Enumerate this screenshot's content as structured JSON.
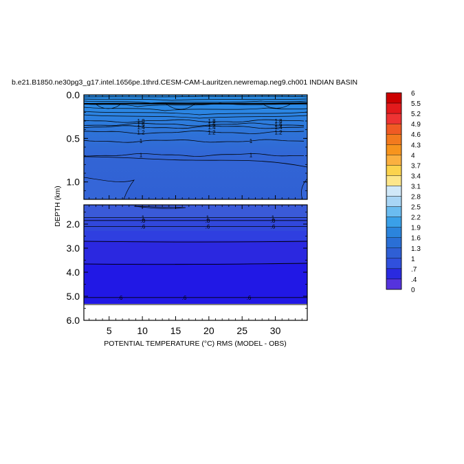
{
  "chart_data": {
    "type": "contour",
    "title": "b.e21.B1850.ne30pg3_g17.intel.1656pe.1thrd.CESM-CAM-Lauritzen.newremap.neg9.ch001 INDIAN BASIN",
    "xlabel": "POTENTIAL TEMPERATURE (°C) RMS (MODEL - OBS)",
    "ylabel": "DEPTH (km)",
    "x_ticks": [
      "5",
      "10",
      "15",
      "20",
      "25",
      "30"
    ],
    "x_tick_values": [
      5,
      10,
      15,
      20,
      25,
      30
    ],
    "xlim": [
      1.2,
      34.8
    ],
    "upper_panel": {
      "ylim": [
        0.0,
        1.2
      ],
      "y_ticks": [
        "0.0",
        "0.5",
        "1.0"
      ],
      "y_tick_values": [
        0.0,
        0.5,
        1.0
      ],
      "contours": [
        {
          "label": "1.8",
          "depth": 0.3
        },
        {
          "label": "1.6",
          "depth": 0.34
        },
        {
          "label": "1.4",
          "depth": 0.37
        },
        {
          "label": "1.2",
          "depth": 0.43
        },
        {
          "label": "1",
          "depth": 0.53
        },
        {
          "label": "1",
          "depth": 0.69
        }
      ]
    },
    "lower_panel": {
      "ylim": [
        1.2,
        6.0
      ],
      "y_ticks": [
        "2.0",
        "3.0",
        "4.0",
        "5.0",
        "6.0"
      ],
      "y_tick_values": [
        2.0,
        3.0,
        4.0,
        5.0,
        6.0
      ],
      "contours": [
        {
          "label": "1",
          "depth": 1.73
        },
        {
          "label": ".8",
          "depth": 1.85
        },
        {
          "label": ".6",
          "depth": 2.1
        },
        {
          "label": ".6",
          "depth": 5.05
        }
      ]
    },
    "colorbar": {
      "labels": [
        "6",
        "5.5",
        "5.2",
        "4.9",
        "4.6",
        "4.3",
        "4",
        "3.7",
        "3.4",
        "3.1",
        "2.8",
        "2.5",
        "2.2",
        "1.9",
        "1.6",
        "1.3",
        "1",
        ".7",
        ".4",
        "0"
      ],
      "colors": [
        "#cc0000",
        "#e31a1c",
        "#ee3333",
        "#f05a24",
        "#f37a1e",
        "#f7941d",
        "#fbb040",
        "#fcd34d",
        "#fde68a",
        "#d0e8f8",
        "#a8d5f5",
        "#6bbcf0",
        "#3aa0e8",
        "#2b84dc",
        "#2a6fd6",
        "#2f5fd5",
        "#3050dd",
        "#2a2ae0",
        "#5533dd",
        "#9a55dd"
      ]
    }
  }
}
